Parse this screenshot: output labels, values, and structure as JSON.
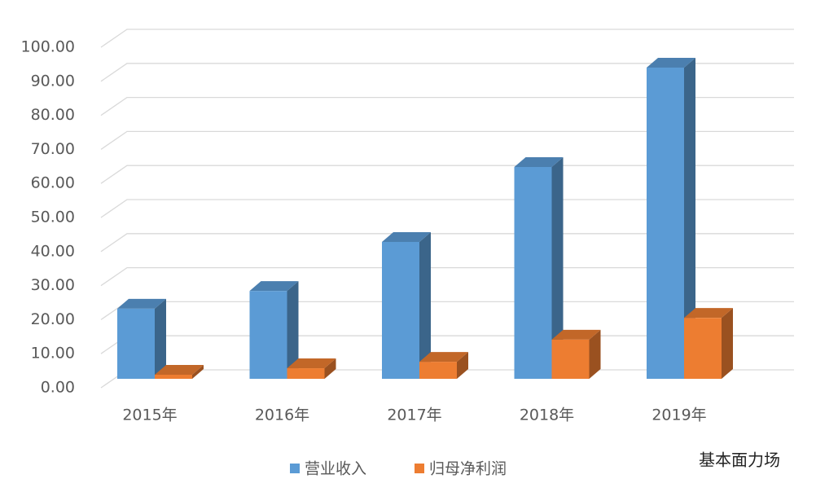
{
  "chart_data": {
    "type": "bar3d",
    "categories": [
      "2015年",
      "2016年",
      "2017年",
      "2018年",
      "2019年"
    ],
    "series": [
      {
        "name": "营业收入",
        "color": "#5b9bd5",
        "values": [
          20.6,
          25.8,
          40.2,
          62.2,
          91.4
        ]
      },
      {
        "name": "归母净利润",
        "color": "#ed7d31",
        "values": [
          1.2,
          3.1,
          5.0,
          11.5,
          17.9
        ]
      }
    ],
    "ylim": [
      0,
      100
    ],
    "yticks": [
      {
        "value": 0,
        "label": "0.00"
      },
      {
        "value": 10,
        "label": "10.00"
      },
      {
        "value": 20,
        "label": "20.00"
      },
      {
        "value": 30,
        "label": "30.00"
      },
      {
        "value": 40,
        "label": "40.00"
      },
      {
        "value": 50,
        "label": "50.00"
      },
      {
        "value": 60,
        "label": "60.00"
      },
      {
        "value": 70,
        "label": "70.00"
      },
      {
        "value": 80,
        "label": "80.00"
      },
      {
        "value": 90,
        "label": "90.00"
      },
      {
        "value": 100,
        "label": "100.00"
      }
    ],
    "grid": true,
    "legend": "bottom",
    "watermark": "基本面力场"
  }
}
